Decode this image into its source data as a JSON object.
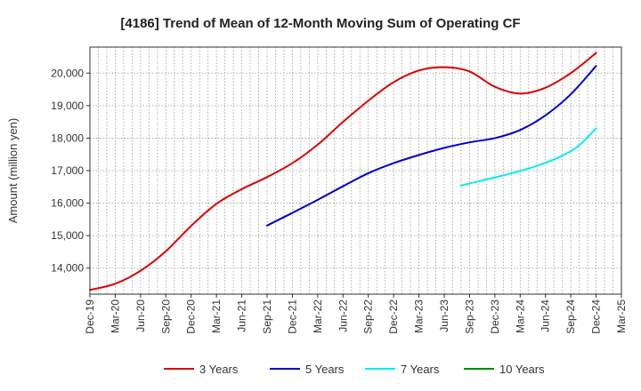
{
  "chart_data": {
    "type": "line",
    "title": "[4186]  Trend of Mean of 12-Month Moving Sum of Operating CF",
    "xlabel": "",
    "ylabel": "Amount (million yen)",
    "ylim": [
      13200,
      20800
    ],
    "yticks": [
      14000,
      15000,
      16000,
      17000,
      18000,
      19000,
      20000
    ],
    "ytick_labels": [
      "14,000",
      "15,000",
      "16,000",
      "17,000",
      "18,000",
      "19,000",
      "20,000"
    ],
    "x_start": "Dec-19",
    "x_months": 63,
    "xtick_labels": [
      "Dec-19",
      "Mar-20",
      "Jun-20",
      "Sep-20",
      "Dec-20",
      "Mar-21",
      "Jun-21",
      "Sep-21",
      "Dec-21",
      "Mar-22",
      "Jun-22",
      "Sep-22",
      "Dec-22",
      "Mar-23",
      "Jun-23",
      "Sep-23",
      "Dec-23",
      "Mar-24",
      "Jun-24",
      "Sep-24",
      "Dec-24",
      "Mar-25"
    ],
    "grid": true,
    "legend_position": "bottom",
    "series": [
      {
        "name": "3 Years",
        "color": "#dd0000",
        "points": [
          [
            0,
            13330
          ],
          [
            3,
            13520
          ],
          [
            6,
            13920
          ],
          [
            9,
            14520
          ],
          [
            12,
            15300
          ],
          [
            15,
            15980
          ],
          [
            18,
            16430
          ],
          [
            21,
            16800
          ],
          [
            24,
            17230
          ],
          [
            27,
            17800
          ],
          [
            30,
            18500
          ],
          [
            33,
            19150
          ],
          [
            36,
            19720
          ],
          [
            39,
            20080
          ],
          [
            42,
            20180
          ],
          [
            45,
            20050
          ],
          [
            48,
            19580
          ],
          [
            51,
            19370
          ],
          [
            54,
            19550
          ],
          [
            57,
            20000
          ],
          [
            60,
            20620
          ]
        ]
      },
      {
        "name": "5 Years",
        "color": "#0000cc",
        "points": [
          [
            21,
            15310
          ],
          [
            24,
            15700
          ],
          [
            27,
            16100
          ],
          [
            30,
            16520
          ],
          [
            33,
            16920
          ],
          [
            36,
            17230
          ],
          [
            39,
            17480
          ],
          [
            42,
            17700
          ],
          [
            45,
            17870
          ],
          [
            48,
            18000
          ],
          [
            51,
            18250
          ],
          [
            54,
            18700
          ],
          [
            57,
            19350
          ],
          [
            60,
            20220
          ]
        ]
      },
      {
        "name": "7 Years",
        "color": "#00eeee",
        "points": [
          [
            44,
            16540
          ],
          [
            47,
            16730
          ],
          [
            50,
            16920
          ],
          [
            53,
            17150
          ],
          [
            56,
            17460
          ],
          [
            58,
            17780
          ],
          [
            60,
            18300
          ]
        ]
      },
      {
        "name": "10 Years",
        "color": "#008800",
        "points": []
      }
    ]
  }
}
